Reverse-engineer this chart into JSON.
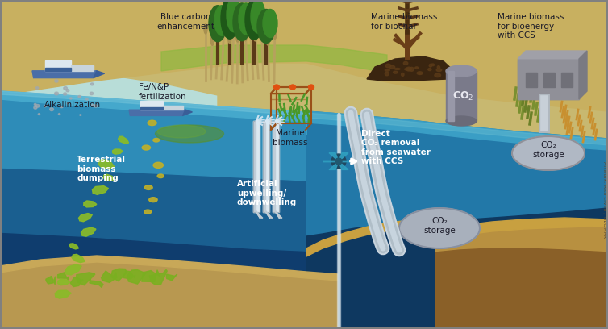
{
  "fig_width": 7.54,
  "fig_height": 4.08,
  "dpi": 100,
  "labels": {
    "alkalinization": "Alkalinization",
    "fe_fertilization": "Fe/N&P\nfertilization",
    "blue_carbon": "Blue carbon\nenhancement",
    "marine_biomass_surface": "Marine\nbiomass",
    "marine_biomass_biochar": "Marine biomass\nfor biochar",
    "co2_label": "CO₂",
    "marine_biomass_bioenergy": "Marine biomass\nfor bioenergy\nwith CCS",
    "terrestrial_dumping": "Terrestrial\nbiomass\ndumping",
    "artificial_upwelling": "Artificial\nupwelling/\ndownwelling",
    "direct_co2": "Direct\nCO₂ removal\nfrom seawater\nwith CCS",
    "co2_storage_upper": "CO₂\nstorage",
    "co2_storage_lower": "CO₂\nstorage",
    "artwork": "Artwork: Rita Erven / GEOMAR"
  }
}
